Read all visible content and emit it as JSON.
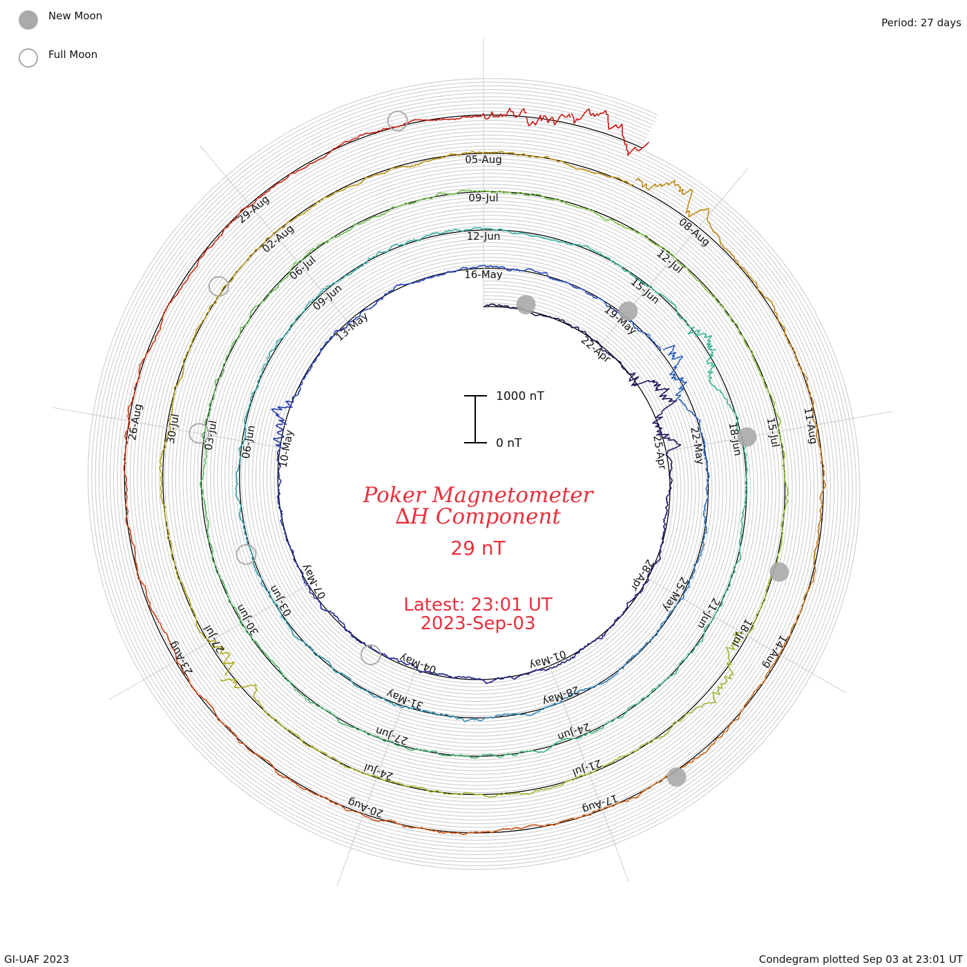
{
  "header": {
    "period": "Period: 27 days"
  },
  "legend": {
    "new_moon": "New Moon",
    "full_moon": "Full Moon",
    "new_moon_color": "#aaaaaa",
    "full_moon_color": "#aaaaaa"
  },
  "scale": {
    "top_label": "1000 nT",
    "bottom_label": "0 nT"
  },
  "title": {
    "line1": "Poker Magnetometer",
    "line2": "∆H Component",
    "value": "29 nT",
    "latest": "Latest: 23:01 UT",
    "date": "2023-Sep-03",
    "color": "#e8303c"
  },
  "footer": {
    "left": "GI-UAF 2023",
    "right": "Condegram plotted Sep 03 at 23:01 UT"
  },
  "chart_data": {
    "type": "line",
    "form": "spiral condegram",
    "title": "Poker Magnetometer ∆H Component",
    "period_days": 27,
    "start_date": "2023-04-19",
    "end_date": "2023-09-03",
    "latest_value_nT": 29,
    "scale_bar_nT": [
      0,
      1000
    ],
    "grid": true,
    "date_labels": [
      "22-Apr",
      "25-Apr",
      "28-Apr",
      "01-May",
      "04-May",
      "07-May",
      "10-May",
      "13-May",
      "16-May",
      "19-May",
      "22-May",
      "25-May",
      "28-May",
      "31-May",
      "03-Jun",
      "06-Jun",
      "09-Jun",
      "12-Jun",
      "15-Jun",
      "18-Jun",
      "21-Jun",
      "24-Jun",
      "27-Jun",
      "30-Jun",
      "03-Jul",
      "06-Jul",
      "09-Jul",
      "12-Jul",
      "15-Jul",
      "18-Jul",
      "21-Jul",
      "24-Jul",
      "27-Jul",
      "30-Jul",
      "02-Aug",
      "05-Aug",
      "08-Aug",
      "11-Aug",
      "14-Aug",
      "17-Aug",
      "20-Aug",
      "23-Aug",
      "26-Aug",
      "29-Aug"
    ],
    "new_moon_dates": [
      "2023-04-20",
      "2023-05-19",
      "2023-06-18",
      "2023-07-17",
      "2023-08-16"
    ],
    "full_moon_dates": [
      "2023-05-05",
      "2023-06-04",
      "2023-07-03",
      "2023-08-01",
      "2023-08-31"
    ],
    "disturbance_days": [
      "2023-04-23",
      "2023-04-24",
      "2023-05-10",
      "2023-05-20",
      "2023-06-16",
      "2023-07-18",
      "2023-07-26",
      "2023-08-07",
      "2023-09-01",
      "2023-09-02"
    ],
    "series_colors": [
      "#1a1040",
      "#1f1f8a",
      "#2748c0",
      "#2f8fb0",
      "#35b5a0",
      "#3fb070",
      "#7cc040",
      "#a8b020",
      "#c08a10",
      "#cc4a10",
      "#c81010"
    ]
  }
}
